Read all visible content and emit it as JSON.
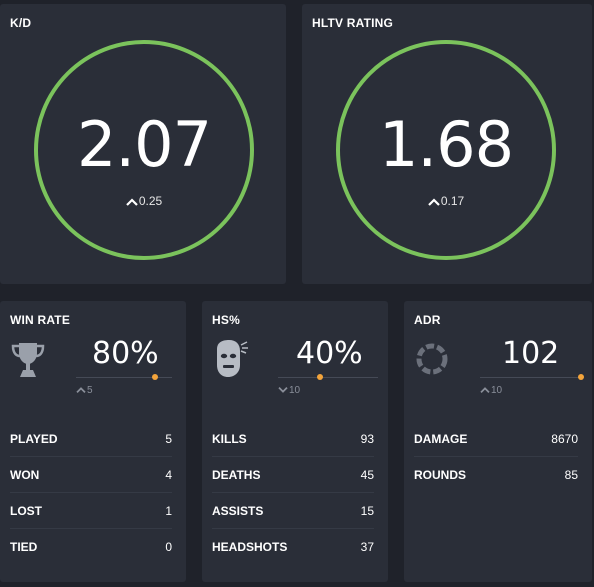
{
  "kd": {
    "title": "K/D",
    "value": "2.07",
    "delta": "0.25",
    "delta_direction": "up",
    "ring_color": "#7bc35c"
  },
  "rating": {
    "title": "HLTV RATING",
    "value": "1.68",
    "delta": "0.17",
    "delta_direction": "up",
    "ring_color": "#7bc35c"
  },
  "win_rate": {
    "title": "WIN RATE",
    "icon": "trophy-icon",
    "value": "80%",
    "delta": "5",
    "delta_direction": "up",
    "rows": [
      {
        "label": "PLAYED",
        "value": "5"
      },
      {
        "label": "WON",
        "value": "4"
      },
      {
        "label": "LOST",
        "value": "1"
      },
      {
        "label": "TIED",
        "value": "0"
      }
    ]
  },
  "hs": {
    "title": "HS%",
    "icon": "headshot-icon",
    "value": "40%",
    "delta": "10",
    "delta_direction": "down",
    "rows": [
      {
        "label": "KILLS",
        "value": "93"
      },
      {
        "label": "DEATHS",
        "value": "45"
      },
      {
        "label": "ASSISTS",
        "value": "15"
      },
      {
        "label": "HEADSHOTS",
        "value": "37"
      }
    ]
  },
  "adr": {
    "title": "ADR",
    "icon": "adr-ring-icon",
    "value": "102",
    "delta": "10",
    "delta_direction": "up",
    "rows": [
      {
        "label": "DAMAGE",
        "value": "8670"
      },
      {
        "label": "ROUNDS",
        "value": "85"
      }
    ]
  },
  "colors": {
    "background": "#1f222a",
    "panel": "#2a2e38",
    "accent_green": "#7bc35c",
    "marker_orange": "#f3a43b"
  }
}
